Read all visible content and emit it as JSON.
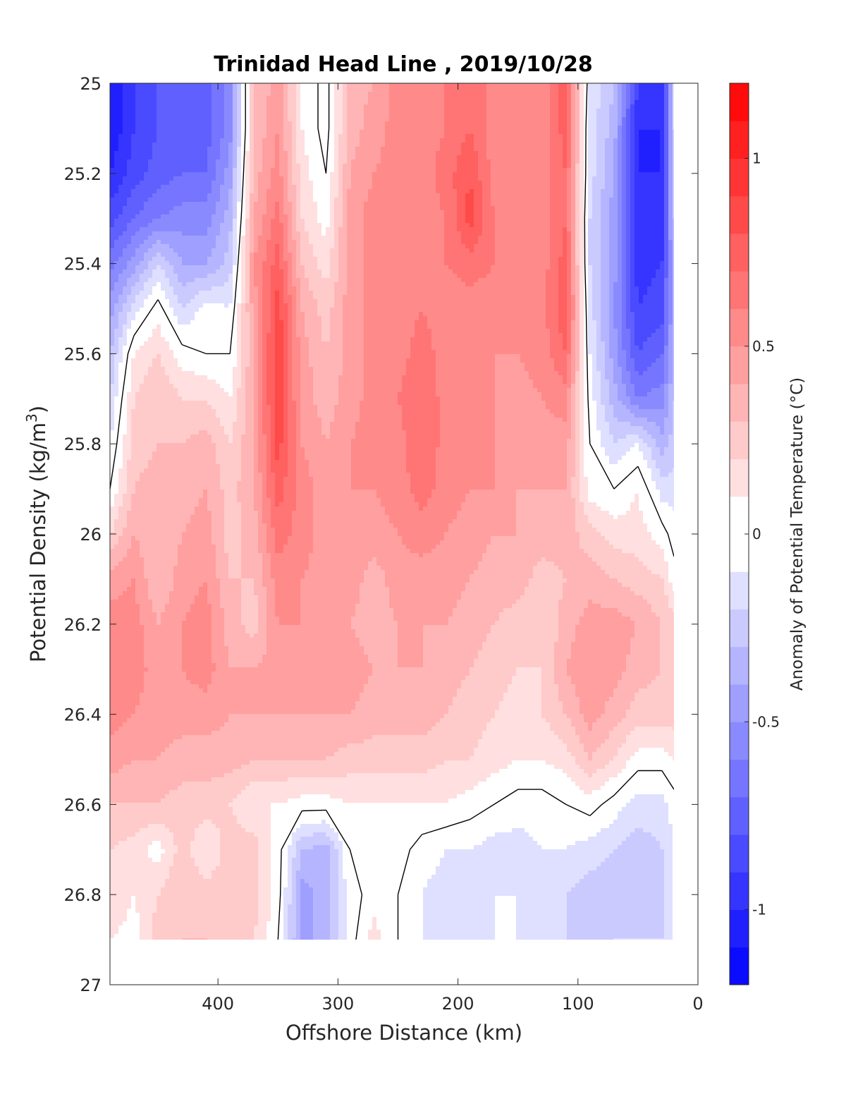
{
  "chart_data": {
    "type": "heatmap",
    "subtype": "filled-contour",
    "title": "Trinidad Head Line , 2019/10/28",
    "xlabel": "Offshore Distance (km)",
    "ylabel_main": "Potential Density (kg/m",
    "ylabel_sup": "3",
    "ylabel_close": ")",
    "colorbar_label": "Anomaly of Potential Temperature (°C)",
    "x_axis": {
      "range": [
        490,
        0
      ],
      "reversed": true,
      "ticks": [
        400,
        300,
        200,
        100,
        0
      ],
      "tick_labels": [
        "400",
        "300",
        "200",
        "100",
        "0"
      ]
    },
    "y_axis": {
      "range": [
        25,
        27
      ],
      "reversed": true,
      "ticks": [
        25,
        25.2,
        25.4,
        25.6,
        25.8,
        26,
        26.2,
        26.4,
        26.6,
        26.8,
        27
      ],
      "tick_labels": [
        "25",
        "25.2",
        "25.4",
        "25.6",
        "25.8",
        "26",
        "26.2",
        "26.4",
        "26.6",
        "26.8",
        "27"
      ]
    },
    "colorbar": {
      "range": [
        -1.2,
        1.2
      ],
      "levels": 24,
      "ticks": [
        -1,
        -0.5,
        0,
        0.5,
        1
      ],
      "tick_labels": [
        "-1",
        "-0.5",
        "0",
        "0.5",
        "1"
      ],
      "colormap": "blue-white-red",
      "min_color": "#0000ff",
      "mid_color": "#ffffff",
      "max_color": "#ff0000"
    },
    "contour_line_level": 0,
    "data_extent": {
      "x": [
        490,
        20
      ],
      "y": [
        25,
        26.9
      ]
    },
    "grid": {
      "x": [
        490,
        470,
        450,
        430,
        410,
        390,
        370,
        350,
        330,
        310,
        290,
        270,
        250,
        230,
        210,
        190,
        170,
        150,
        130,
        110,
        90,
        70,
        50,
        30,
        20
      ],
      "y": [
        25,
        25.1,
        25.2,
        25.3,
        25.4,
        25.5,
        25.6,
        25.7,
        25.8,
        25.9,
        26,
        26.1,
        26.2,
        26.3,
        26.4,
        26.5,
        26.6,
        26.7,
        26.8,
        26.9
      ]
    },
    "values": [
      [
        -1.1,
        -0.9,
        -0.8,
        -0.7,
        -0.75,
        -0.55,
        0.3,
        0.45,
        0.1,
        -0.05,
        0.35,
        0.4,
        0.55,
        0.55,
        0.6,
        0.7,
        0.55,
        0.5,
        0.55,
        0.75,
        -0.1,
        -0.3,
        -0.9,
        -1.0,
        -0.2
      ],
      [
        -1.1,
        -0.9,
        -0.8,
        -0.75,
        -0.75,
        -0.55,
        0.3,
        0.5,
        0.1,
        -0.05,
        0.35,
        0.45,
        0.55,
        0.55,
        0.6,
        0.7,
        0.55,
        0.5,
        0.55,
        0.75,
        -0.15,
        -0.35,
        -1.0,
        -1.0,
        -0.2
      ],
      [
        -1.0,
        -0.85,
        -0.75,
        -0.7,
        -0.7,
        -0.45,
        0.35,
        0.55,
        0.15,
        0.0,
        0.4,
        0.5,
        0.55,
        0.55,
        0.65,
        0.8,
        0.55,
        0.5,
        0.55,
        0.7,
        -0.15,
        -0.4,
        -1.0,
        -1.0,
        -0.25
      ],
      [
        -0.85,
        -0.7,
        -0.6,
        -0.55,
        -0.55,
        -0.35,
        0.4,
        0.65,
        0.2,
        0.05,
        0.45,
        0.55,
        0.55,
        0.55,
        0.6,
        0.85,
        0.6,
        0.55,
        0.55,
        0.7,
        -0.2,
        -0.45,
        -1.0,
        -0.95,
        -0.3
      ],
      [
        -0.65,
        -0.45,
        -0.2,
        -0.4,
        -0.4,
        -0.25,
        0.5,
        0.75,
        0.3,
        0.15,
        0.45,
        0.55,
        0.55,
        0.6,
        0.6,
        0.65,
        0.6,
        0.55,
        0.55,
        0.75,
        -0.2,
        -0.45,
        -0.95,
        -0.9,
        -0.35
      ],
      [
        -0.45,
        -0.15,
        0.05,
        -0.2,
        -0.05,
        -0.1,
        0.45,
        0.85,
        0.4,
        0.25,
        0.45,
        0.55,
        0.55,
        0.6,
        0.55,
        0.55,
        0.55,
        0.5,
        0.55,
        0.8,
        -0.15,
        -0.5,
        -0.9,
        -0.85,
        -0.4
      ],
      [
        -0.3,
        0.1,
        0.2,
        0.05,
        0.0,
        0.0,
        0.4,
        0.9,
        0.45,
        0.3,
        0.45,
        0.55,
        0.55,
        0.65,
        0.55,
        0.5,
        0.5,
        0.5,
        0.55,
        0.7,
        -0.1,
        -0.45,
        -0.8,
        -0.7,
        -0.35
      ],
      [
        -0.2,
        0.2,
        0.3,
        0.2,
        0.2,
        0.1,
        0.4,
        0.9,
        0.45,
        0.35,
        0.45,
        0.55,
        0.6,
        0.7,
        0.55,
        0.5,
        0.5,
        0.45,
        0.5,
        0.55,
        -0.05,
        -0.35,
        -0.6,
        -0.55,
        -0.3
      ],
      [
        -0.1,
        0.25,
        0.3,
        0.3,
        0.35,
        0.2,
        0.4,
        0.85,
        0.5,
        0.4,
        0.5,
        0.55,
        0.55,
        0.7,
        0.55,
        0.5,
        0.5,
        0.45,
        0.45,
        0.45,
        0.0,
        -0.2,
        -0.1,
        -0.35,
        -0.25
      ],
      [
        0.0,
        0.3,
        0.35,
        0.35,
        0.4,
        0.25,
        0.4,
        0.75,
        0.55,
        0.45,
        0.5,
        0.5,
        0.55,
        0.65,
        0.55,
        0.5,
        0.5,
        0.4,
        0.4,
        0.4,
        0.05,
        0.0,
        0.1,
        -0.15,
        -0.15
      ],
      [
        0.2,
        0.4,
        0.3,
        0.4,
        0.45,
        0.25,
        0.35,
        0.65,
        0.55,
        0.45,
        0.5,
        0.45,
        0.5,
        0.55,
        0.5,
        0.45,
        0.4,
        0.4,
        0.35,
        0.35,
        0.25,
        0.15,
        0.15,
        0.05,
        -0.05
      ],
      [
        0.45,
        0.5,
        0.3,
        0.45,
        0.5,
        0.3,
        0.3,
        0.55,
        0.5,
        0.45,
        0.45,
        0.35,
        0.45,
        0.45,
        0.45,
        0.4,
        0.35,
        0.35,
        0.25,
        0.3,
        0.35,
        0.3,
        0.25,
        0.2,
        0.05
      ],
      [
        0.55,
        0.55,
        0.4,
        0.5,
        0.55,
        0.35,
        0.25,
        0.5,
        0.5,
        0.45,
        0.4,
        0.35,
        0.4,
        0.4,
        0.4,
        0.35,
        0.3,
        0.25,
        0.2,
        0.35,
        0.45,
        0.45,
        0.4,
        0.3,
        0.25
      ],
      [
        0.6,
        0.55,
        0.45,
        0.5,
        0.55,
        0.4,
        0.4,
        0.45,
        0.45,
        0.45,
        0.45,
        0.4,
        0.4,
        0.4,
        0.35,
        0.3,
        0.25,
        0.2,
        0.2,
        0.4,
        0.5,
        0.45,
        0.35,
        0.3,
        0.3
      ],
      [
        0.55,
        0.5,
        0.45,
        0.45,
        0.45,
        0.4,
        0.4,
        0.4,
        0.4,
        0.4,
        0.4,
        0.35,
        0.35,
        0.35,
        0.3,
        0.25,
        0.2,
        0.15,
        0.2,
        0.3,
        0.45,
        0.35,
        0.25,
        0.25,
        0.25
      ],
      [
        0.45,
        0.4,
        0.4,
        0.35,
        0.35,
        0.35,
        0.3,
        0.3,
        0.3,
        0.3,
        0.25,
        0.25,
        0.25,
        0.25,
        0.2,
        0.2,
        0.15,
        0.1,
        0.1,
        0.15,
        0.3,
        0.2,
        0.05,
        0.05,
        0.1
      ],
      [
        0.3,
        0.3,
        0.3,
        0.25,
        0.25,
        0.2,
        0.1,
        0.1,
        0.05,
        0.05,
        0.1,
        0.1,
        0.1,
        0.1,
        0.1,
        0.05,
        0.0,
        -0.05,
        -0.05,
        0.0,
        0.05,
        -0.05,
        -0.15,
        -0.15,
        -0.05
      ],
      [
        0.2,
        0.15,
        0.05,
        0.25,
        0.1,
        0.25,
        0.25,
        0.05,
        -0.3,
        -0.35,
        0.0,
        0.1,
        0.05,
        -0.05,
        -0.1,
        -0.1,
        -0.15,
        -0.15,
        -0.1,
        -0.1,
        -0.15,
        -0.2,
        -0.25,
        -0.2,
        -0.1
      ],
      [
        0.2,
        0.1,
        0.2,
        0.3,
        0.25,
        0.25,
        0.25,
        0.05,
        -0.45,
        -0.35,
        -0.05,
        0.05,
        0.0,
        -0.1,
        -0.15,
        -0.1,
        -0.1,
        -0.1,
        -0.15,
        -0.2,
        -0.25,
        -0.25,
        -0.3,
        -0.25,
        -0.1
      ],
      [
        0.1,
        0.05,
        0.25,
        0.3,
        0.3,
        0.25,
        0.2,
        0.0,
        -0.45,
        -0.35,
        -0.05,
        0.15,
        0.0,
        -0.1,
        -0.15,
        -0.15,
        -0.1,
        -0.1,
        -0.15,
        -0.2,
        -0.25,
        -0.2,
        -0.2,
        -0.2,
        -0.1
      ]
    ]
  }
}
